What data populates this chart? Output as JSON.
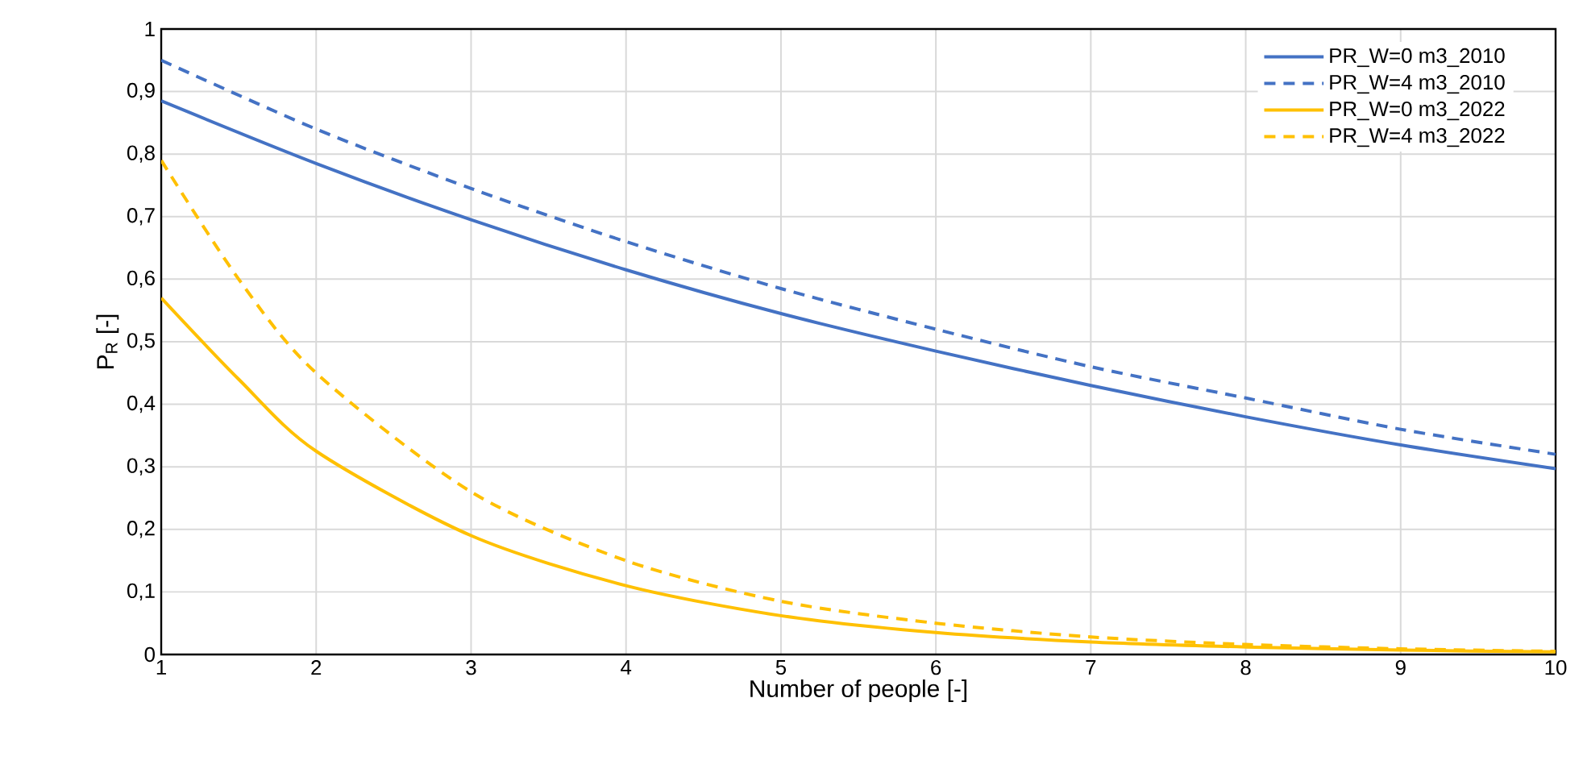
{
  "chart_data": {
    "type": "line",
    "xlabel": "Number of people [-]",
    "ylabel": "P$_{R}$ [-]",
    "xlim": [
      1,
      10
    ],
    "ylim": [
      0,
      1
    ],
    "xticks": [
      1,
      2,
      3,
      4,
      5,
      6,
      7,
      8,
      9,
      10
    ],
    "yticks": [
      0,
      {
        "value": 0.1,
        "label": "0,1"
      },
      {
        "value": 0.2,
        "label": "0,2"
      },
      {
        "value": 0.3,
        "label": "0,3"
      },
      {
        "value": 0.4,
        "label": "0,4"
      },
      {
        "value": 0.5,
        "label": "0,5"
      },
      {
        "value": 0.6,
        "label": "0,6"
      },
      {
        "value": 0.7,
        "label": "0,7"
      },
      {
        "value": 0.8,
        "label": "0,8"
      },
      {
        "value": 0.9,
        "label": "0,9"
      },
      1
    ],
    "grid": true,
    "legend": "top right",
    "marker": "none",
    "series": [
      {
        "name": "PR_W=0 m3_2010",
        "color": "#4472c4",
        "line_style": "solid",
        "x": [
          1,
          2,
          3,
          4,
          5,
          6,
          7,
          8,
          9,
          10
        ],
        "values": [
          0.885,
          0.785,
          0.695,
          0.615,
          0.545,
          0.485,
          0.43,
          0.38,
          0.335,
          0.297
        ]
      },
      {
        "name": "PR_W=4 m3_2010",
        "color": "#4472c4",
        "line_style": "dashed",
        "x": [
          1,
          2,
          3,
          4,
          5,
          6,
          7,
          8,
          9,
          10
        ],
        "values": [
          0.95,
          0.84,
          0.745,
          0.66,
          0.585,
          0.52,
          0.46,
          0.41,
          0.36,
          0.32
        ]
      },
      {
        "name": "PR_W=0 m3_2022",
        "color": "#ffc000",
        "line_style": "solid",
        "x": [
          1,
          1.5,
          2,
          3,
          4,
          5,
          6,
          7,
          8,
          9,
          10
        ],
        "values": [
          0.57,
          0.44,
          0.325,
          0.19,
          0.11,
          0.062,
          0.035,
          0.02,
          0.012,
          0.007,
          0.004
        ]
      },
      {
        "name": "PR_W=4 m3_2022",
        "color": "#ffc000",
        "line_style": "dashed",
        "x": [
          1,
          1.5,
          2,
          3,
          4,
          5,
          6,
          7,
          8,
          9,
          10
        ],
        "values": [
          0.79,
          0.6,
          0.45,
          0.26,
          0.15,
          0.085,
          0.05,
          0.028,
          0.016,
          0.009,
          0.005
        ]
      }
    ]
  }
}
